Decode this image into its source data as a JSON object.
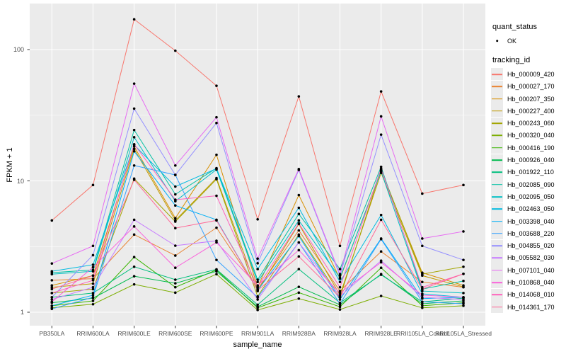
{
  "figure": {
    "background": "#FFFFFF",
    "panel_bg": "#EBEBEB",
    "grid_color": "#FFFFFF",
    "tick_color": "#333333",
    "tick_label_color": "#4D4D4D",
    "point_color": "#000000"
  },
  "legend": {
    "quant_status_title": "quant_status",
    "quant_status_value": "OK",
    "tracking_id_title": "tracking_id"
  },
  "chart_data": {
    "type": "line",
    "title": "",
    "xlabel": "sample_name",
    "ylabel": "FPKM + 1",
    "y_scale": "log10",
    "ylim": [
      0.81,
      218
    ],
    "y_ticks": [
      {
        "label": "100",
        "value": 100
      },
      {
        "label": "10",
        "value": 10
      },
      {
        "label": "1",
        "value": 1
      }
    ],
    "y_minor": [
      3.1623,
      31.623
    ],
    "grid": true,
    "legend_position": "right",
    "categories": [
      "PB350LA",
      "RRIM600LA",
      "RRIM600LE",
      "RRIM600SE",
      "RRIM600PE",
      "RRIM901LA",
      "RRIM928BA",
      "RRIM928LA",
      "RRIM928LE",
      "RRII105LA_Control",
      "RRII105LA_Stressed"
    ],
    "series": [
      {
        "name": "Hb_000009_420",
        "color": "#F8766D",
        "values": [
          5.0,
          9.3,
          170,
          98,
          53,
          5.1,
          44,
          3.2,
          48,
          8.0,
          9.3
        ]
      },
      {
        "name": "Hb_000027_170",
        "color": "#EA8331",
        "values": [
          1.75,
          1.8,
          3.9,
          2.7,
          4.4,
          1.5,
          4.2,
          1.45,
          2.9,
          1.7,
          1.55
        ]
      },
      {
        "name": "Hb_000207_350",
        "color": "#D89000",
        "values": [
          1.6,
          1.9,
          18.3,
          5.2,
          15.8,
          1.55,
          7.8,
          1.8,
          12.0,
          2.0,
          1.6
        ]
      },
      {
        "name": "Hb_000227_400",
        "color": "#C09B00",
        "values": [
          1.55,
          1.65,
          17.5,
          5.0,
          10.5,
          1.45,
          4.7,
          1.35,
          11.5,
          1.9,
          1.56
        ]
      },
      {
        "name": "Hb_000243_060",
        "color": "#A3A500",
        "values": [
          1.4,
          1.5,
          10.4,
          4.9,
          10.3,
          1.32,
          3.9,
          1.3,
          12.2,
          1.95,
          2.22
        ]
      },
      {
        "name": "Hb_000320_040",
        "color": "#7CAE00",
        "values": [
          1.08,
          1.15,
          1.63,
          1.41,
          1.95,
          1.04,
          1.27,
          1.05,
          1.33,
          1.08,
          1.12
        ]
      },
      {
        "name": "Hb_000416_190",
        "color": "#39B600",
        "values": [
          1.12,
          1.22,
          2.63,
          1.55,
          2.1,
          1.08,
          1.41,
          1.1,
          2.18,
          1.12,
          1.18
        ]
      },
      {
        "name": "Hb_000926_040",
        "color": "#00BB4E",
        "values": [
          1.18,
          1.28,
          1.88,
          1.66,
          2.05,
          1.1,
          1.56,
          1.14,
          1.95,
          1.16,
          1.22
        ]
      },
      {
        "name": "Hb_001922_110",
        "color": "#00BF7D",
        "values": [
          1.3,
          1.4,
          2.22,
          1.77,
          2.12,
          1.14,
          2.13,
          1.18,
          1.93,
          1.2,
          1.28
        ]
      },
      {
        "name": "Hb_002085_090",
        "color": "#00C1A3",
        "values": [
          2.0,
          2.1,
          24.4,
          7.9,
          12.5,
          1.77,
          5.6,
          2.13,
          12.8,
          1.5,
          1.73
        ]
      },
      {
        "name": "Hb_002095_050",
        "color": "#00BFC4",
        "values": [
          1.95,
          2.05,
          21.5,
          7.0,
          12.2,
          1.7,
          5.0,
          1.83,
          11.8,
          1.45,
          1.4
        ]
      },
      {
        "name": "Hb_002463_050",
        "color": "#00BAE0",
        "values": [
          2.05,
          2.3,
          18.8,
          9.05,
          12.4,
          2.13,
          6.24,
          1.7,
          5.5,
          1.38,
          1.3
        ]
      },
      {
        "name": "Hb_003398_040",
        "color": "#00B0F6",
        "values": [
          1.12,
          1.35,
          16.8,
          6.5,
          5.06,
          1.47,
          3.8,
          1.25,
          3.64,
          1.27,
          1.3
        ]
      },
      {
        "name": "Hb_003688_220",
        "color": "#35A2FF",
        "values": [
          1.06,
          1.3,
          13.1,
          11.1,
          2.5,
          1.3,
          3.4,
          1.16,
          3.6,
          1.2,
          1.16
        ]
      },
      {
        "name": "Hb_004855_020",
        "color": "#9590FF",
        "values": [
          1.3,
          2.72,
          35.5,
          11.1,
          27.6,
          2.36,
          12.1,
          1.9,
          22.5,
          3.2,
          2.5
        ]
      },
      {
        "name": "Hb_005582_030",
        "color": "#C77CFF",
        "values": [
          1.25,
          1.55,
          5.06,
          3.21,
          3.5,
          1.25,
          3.4,
          1.32,
          2.47,
          1.3,
          1.25
        ]
      },
      {
        "name": "Hb_007101_040",
        "color": "#E76BF3",
        "values": [
          2.35,
          3.2,
          55,
          13.1,
          30.5,
          2.56,
          12.3,
          1.95,
          31,
          3.64,
          4.12
        ]
      },
      {
        "name": "Hb_010868_040",
        "color": "#FA62DB",
        "values": [
          1.2,
          2.2,
          4.5,
          2.18,
          3.4,
          1.6,
          2.97,
          1.4,
          2.4,
          1.35,
          1.3
        ]
      },
      {
        "name": "Hb_014068_010",
        "color": "#FF62BC",
        "values": [
          1.4,
          1.75,
          19.0,
          7.19,
          7.7,
          1.56,
          4.75,
          1.55,
          12.4,
          1.55,
          1.96
        ]
      },
      {
        "name": "Hb_014361_170",
        "color": "#FF6A98",
        "values": [
          1.5,
          1.9,
          10.2,
          4.37,
          5.0,
          1.47,
          2.66,
          1.3,
          5.06,
          1.5,
          1.96
        ]
      }
    ]
  }
}
